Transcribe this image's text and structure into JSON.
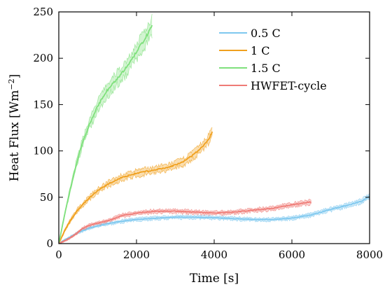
{
  "chart_data": {
    "type": "line",
    "title": "",
    "xlabel": "Time [s]",
    "ylabel": "Heat Flux [Wm",
    "ylabel_sup": "−2",
    "ylabel_close": "]",
    "xlim": [
      0,
      8000
    ],
    "ylim": [
      0,
      250
    ],
    "xticks": [
      0,
      2000,
      4000,
      6000,
      8000
    ],
    "yticks": [
      0,
      50,
      100,
      150,
      200,
      250
    ],
    "grid": false,
    "legend_position": "top-right",
    "series": [
      {
        "name": "0.5 C",
        "color": "#7ec8ef",
        "x": [
          0,
          200,
          500,
          800,
          1200,
          1600,
          2000,
          2500,
          3000,
          3500,
          4000,
          4500,
          5000,
          5500,
          6000,
          6500,
          7000,
          7500,
          7800,
          8000
        ],
        "y": [
          0,
          5,
          12,
          17,
          21,
          24,
          26,
          27.5,
          28.5,
          28.5,
          28,
          27,
          26,
          26,
          27.5,
          31,
          37,
          42,
          46,
          51
        ]
      },
      {
        "name": "1 C",
        "color": "#f0a01e",
        "x": [
          0,
          150,
          300,
          500,
          800,
          1000,
          1300,
          1600,
          2000,
          2400,
          2800,
          3200,
          3500,
          3800,
          3950
        ],
        "y": [
          0,
          14,
          25,
          37,
          50,
          57,
          65,
          71,
          76,
          79,
          82,
          88,
          97,
          109,
          120
        ]
      },
      {
        "name": "1.5 C",
        "color": "#7fe07c",
        "x": [
          0,
          100,
          200,
          400,
          600,
          800,
          1000,
          1200,
          1400,
          1600,
          1800,
          2000,
          2200,
          2400
        ],
        "y": [
          0,
          21,
          41,
          77,
          108,
          130,
          148,
          163,
          173,
          183,
          193,
          207,
          220,
          235
        ]
      },
      {
        "name": "HWFET-cycle",
        "color": "#ef7b76",
        "x": [
          0,
          200,
          400,
          600,
          800,
          1000,
          1300,
          1600,
          2000,
          2500,
          3000,
          3500,
          4000,
          4500,
          5000,
          5500,
          6000,
          6200,
          6500
        ],
        "y": [
          0,
          4,
          9,
          16,
          20,
          22,
          25,
          30,
          33,
          35,
          35,
          34,
          33,
          34,
          36,
          38,
          42,
          43,
          45
        ]
      }
    ]
  }
}
